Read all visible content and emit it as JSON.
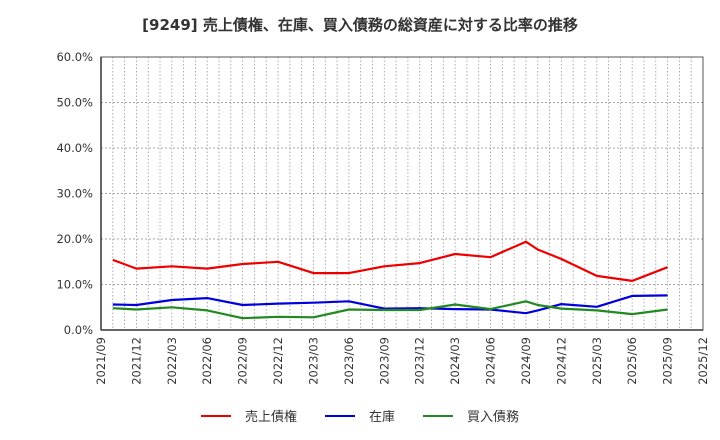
{
  "title": "[9249]  売上債権、在庫、買入債務の総資産に対する比率の推移",
  "legend": [
    {
      "label": "売上債権",
      "color": "#ee0000"
    },
    {
      "label": "在庫",
      "color": "#0000dd"
    },
    {
      "label": "買入債務",
      "color": "#228822"
    }
  ],
  "chart_data": {
    "type": "line",
    "title": "[9249]  売上債権、在庫、買入債務の総資産に対する比率の推移",
    "xlabel": "",
    "ylabel": "",
    "ylim": [
      0,
      60
    ],
    "yticks": [
      "0.0%",
      "10.0%",
      "20.0%",
      "30.0%",
      "40.0%",
      "50.0%",
      "60.0%"
    ],
    "xticks": [
      "2021/09",
      "2021/12",
      "2022/03",
      "2022/06",
      "2022/09",
      "2022/12",
      "2023/03",
      "2023/06",
      "2023/09",
      "2023/12",
      "2024/03",
      "2024/06",
      "2024/09",
      "2024/12",
      "2025/03",
      "2025/06",
      "2025/09",
      "2025/12"
    ],
    "grid": true,
    "legend_position": "bottom",
    "x": [
      "2021/10",
      "2021/12",
      "2022/03",
      "2022/06",
      "2022/09",
      "2022/12",
      "2023/03",
      "2023/06",
      "2023/09",
      "2023/12",
      "2024/03",
      "2024/06",
      "2024/09",
      "2024/10",
      "2024/12",
      "2025/03",
      "2025/06",
      "2025/09"
    ],
    "series": [
      {
        "name": "売上債権",
        "color": "#ee0000",
        "values": [
          15.4,
          13.5,
          14.0,
          13.5,
          14.5,
          15.0,
          12.5,
          12.5,
          14.0,
          14.7,
          16.7,
          16.0,
          19.4,
          17.7,
          15.6,
          11.9,
          10.8,
          13.8
        ]
      },
      {
        "name": "在庫",
        "color": "#0000dd",
        "values": [
          5.6,
          5.5,
          6.6,
          7.0,
          5.5,
          5.8,
          6.0,
          6.3,
          4.7,
          4.8,
          4.6,
          4.5,
          3.7,
          4.3,
          5.7,
          5.1,
          7.5,
          7.6
        ]
      },
      {
        "name": "買入債務",
        "color": "#228822",
        "values": [
          4.8,
          4.5,
          5.0,
          4.3,
          2.6,
          2.9,
          2.8,
          4.5,
          4.4,
          4.4,
          5.6,
          4.6,
          6.3,
          5.5,
          4.7,
          4.3,
          3.5,
          4.5
        ]
      }
    ]
  }
}
